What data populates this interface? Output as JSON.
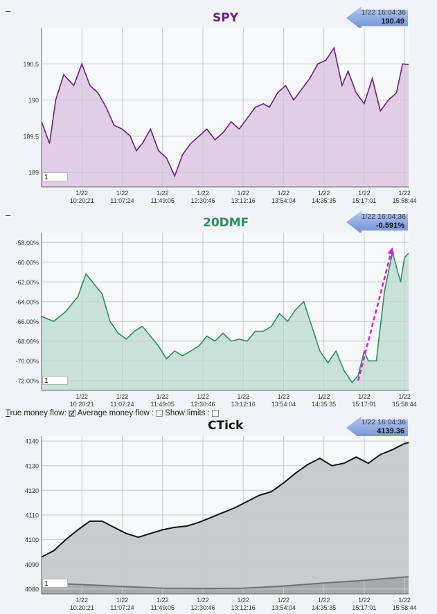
{
  "x_ticks": [
    {
      "date": "1/22",
      "time": "10:20:21"
    },
    {
      "date": "1/22",
      "time": "11:07:24"
    },
    {
      "date": "1/22",
      "time": "11:49:05"
    },
    {
      "date": "1/22",
      "time": "12:30:46"
    },
    {
      "date": "1/22",
      "time": "13:12:16"
    },
    {
      "date": "1/22",
      "time": "13:54:04"
    },
    {
      "date": "1/22",
      "time": "14:35:35"
    },
    {
      "date": "1/22",
      "time": "15:17:01"
    },
    {
      "date": "1/22",
      "time": "15:58:44"
    }
  ],
  "panels": {
    "spy": {
      "dash": "–",
      "title": "SPY",
      "title_color": "#6b1f78",
      "badge_time": "1/22 16:04:36",
      "badge_value": "190.49",
      "zoom_value": "1"
    },
    "dmf": {
      "dash": "–",
      "title": "20DMF",
      "title_color": "#2f8d5c",
      "badge_time": "1/22 16:04:36",
      "badge_value": "-0.591%",
      "zoom_value": "1"
    },
    "ctick": {
      "dash": "–",
      "title": "CTick",
      "title_color": "#111111",
      "badge_time": "1/22 16:04:36",
      "badge_value": "4139.36",
      "zoom_value": "1"
    }
  },
  "options": {
    "true_flow_accel": "T",
    "true_flow_rest": "rue money flow:",
    "true_flow_checked": "🗹",
    "avg_flow_label": "Average money flow :",
    "show_limits_label": "Show limits :"
  },
  "chart_data": [
    {
      "type": "area",
      "title": "SPY",
      "ylim": [
        188.8,
        191.0
      ],
      "yticks": [
        189,
        189.5,
        190,
        190.5
      ],
      "grid": true,
      "series": [
        {
          "color": "#6b1f78",
          "fill": "#e0cde6",
          "x": [
            0,
            0.2,
            0.35,
            0.55,
            0.8,
            1.0,
            1.2,
            1.4,
            1.6,
            1.8,
            2.0,
            2.2,
            2.35,
            2.5,
            2.7,
            2.9,
            3.1,
            3.3,
            3.5,
            3.7,
            3.9,
            4.1,
            4.3,
            4.5,
            4.7,
            4.9,
            5.1,
            5.3,
            5.5,
            5.65,
            5.85,
            6.05,
            6.25,
            6.45,
            6.65,
            6.85,
            7.05,
            7.25,
            7.45,
            7.6,
            7.8,
            8.0,
            8.2,
            8.4,
            8.6,
            8.8,
            8.95,
            9.1
          ],
          "y": [
            189.7,
            189.4,
            190.0,
            190.35,
            190.2,
            190.5,
            190.2,
            190.1,
            189.9,
            189.65,
            189.6,
            189.5,
            189.3,
            189.4,
            189.6,
            189.3,
            189.2,
            188.95,
            189.25,
            189.4,
            189.5,
            189.6,
            189.45,
            189.55,
            189.7,
            189.6,
            189.75,
            189.9,
            189.95,
            189.9,
            190.1,
            190.2,
            190.0,
            190.15,
            190.3,
            190.5,
            190.55,
            190.72,
            190.2,
            190.4,
            190.1,
            189.95,
            190.3,
            189.85,
            190.0,
            190.1,
            190.5,
            190.49
          ]
        }
      ]
    },
    {
      "type": "area",
      "title": "20DMF",
      "ylabel_suffix": "%",
      "ylim": [
        -0.73,
        -0.57
      ],
      "yticks": [
        -0.72,
        -0.7,
        -0.68,
        -0.66,
        -0.64,
        -0.62,
        -0.6,
        -0.58
      ],
      "grid": true,
      "series": [
        {
          "color": "#2f8d5c",
          "fill": "#c8e2da",
          "x": [
            0,
            0.3,
            0.6,
            0.9,
            1.1,
            1.3,
            1.5,
            1.7,
            1.9,
            2.1,
            2.3,
            2.5,
            2.7,
            2.9,
            3.1,
            3.3,
            3.5,
            3.7,
            3.9,
            4.1,
            4.3,
            4.5,
            4.7,
            4.9,
            5.1,
            5.3,
            5.5,
            5.7,
            5.9,
            6.1,
            6.3,
            6.5,
            6.7,
            6.9,
            7.1,
            7.3,
            7.5,
            7.7,
            7.85,
            8.0,
            8.1,
            8.3,
            8.5,
            8.7,
            8.9,
            9.0,
            9.1
          ],
          "y": [
            -0.655,
            -0.66,
            -0.65,
            -0.635,
            -0.612,
            -0.622,
            -0.632,
            -0.66,
            -0.672,
            -0.678,
            -0.67,
            -0.665,
            -0.675,
            -0.685,
            -0.698,
            -0.69,
            -0.695,
            -0.69,
            -0.685,
            -0.675,
            -0.68,
            -0.672,
            -0.68,
            -0.678,
            -0.68,
            -0.67,
            -0.67,
            -0.665,
            -0.652,
            -0.66,
            -0.648,
            -0.64,
            -0.665,
            -0.69,
            -0.702,
            -0.69,
            -0.71,
            -0.722,
            -0.715,
            -0.69,
            -0.7,
            -0.7,
            -0.63,
            -0.59,
            -0.62,
            -0.595,
            -0.591
          ]
        }
      ],
      "annotation": {
        "type": "dashed-arrow",
        "color": "#e016e0",
        "from": [
          7.85,
          -0.72
        ],
        "to": [
          8.7,
          -0.585
        ]
      }
    },
    {
      "type": "area",
      "title": "CTick",
      "ylim": [
        4078,
        4142
      ],
      "yticks": [
        4080,
        4090,
        4100,
        4110,
        4120,
        4130,
        4140
      ],
      "grid": true,
      "series": [
        {
          "name": "",
          "color": "#111111",
          "fill": "#c9cbcd",
          "x": [
            0,
            0.3,
            0.6,
            0.9,
            1.2,
            1.5,
            1.8,
            2.1,
            2.4,
            2.7,
            3.0,
            3.3,
            3.6,
            3.9,
            4.2,
            4.5,
            4.8,
            5.1,
            5.4,
            5.7,
            6.0,
            6.3,
            6.6,
            6.9,
            7.2,
            7.5,
            7.8,
            8.1,
            8.4,
            8.7,
            9.0,
            9.1
          ],
          "y": [
            4093,
            4095.5,
            4100,
            4104,
            4107.5,
            4107.5,
            4105,
            4102.5,
            4101,
            4102.5,
            4104,
            4105,
            4105.5,
            4107,
            4109,
            4111,
            4113,
            4115.5,
            4118,
            4119.5,
            4123,
            4127,
            4130.5,
            4133,
            4130,
            4131,
            4133.5,
            4131,
            4134.5,
            4136.5,
            4139,
            4139.36
          ]
        },
        {
          "name": "",
          "color": "#6f7173",
          "fill": "#a7a9ab",
          "x": [
            0,
            1.0,
            2.0,
            3.0,
            4.0,
            5.0,
            6.0,
            7.0,
            8.0,
            9.1
          ],
          "y": [
            4082.5,
            4081.8,
            4081,
            4080.3,
            4080.2,
            4080.3,
            4081.2,
            4082.4,
            4083.5,
            4085
          ]
        }
      ]
    }
  ]
}
